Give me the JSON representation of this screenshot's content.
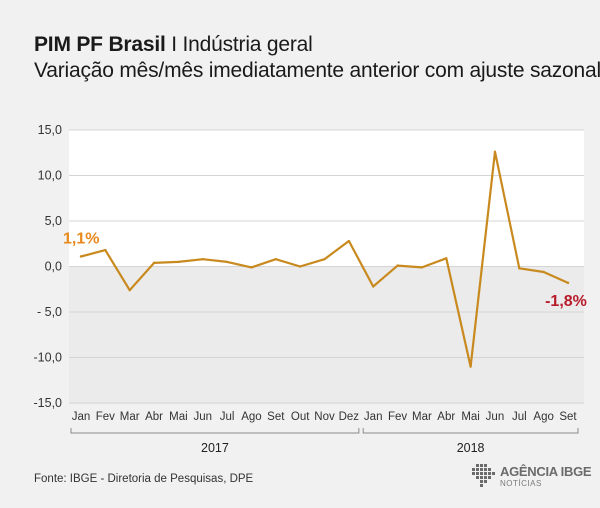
{
  "header": {
    "title_bold": "PIM PF Brasil",
    "title_sep": " I ",
    "title_rest": "Indústria geral",
    "subtitle": "Variação mês/mês imediatamente anterior com ajuste sazonal"
  },
  "chart_data": {
    "type": "line",
    "title": "PIM PF Brasil I Indústria geral",
    "subtitle": "Variação mês/mês imediatamente anterior com ajuste sazonal",
    "categories": [
      "Jan",
      "Fev",
      "Mar",
      "Abr",
      "Mai",
      "Jun",
      "Jul",
      "Ago",
      "Set",
      "Out",
      "Nov",
      "Dez",
      "Jan",
      "Fev",
      "Mar",
      "Abr",
      "Mai",
      "Jun",
      "Jul",
      "Ago",
      "Set"
    ],
    "years": [
      {
        "label": "2017",
        "start": 0,
        "end": 11
      },
      {
        "label": "2018",
        "start": 12,
        "end": 20
      }
    ],
    "series": [
      {
        "name": "Indústria geral",
        "color": "#c88a1e",
        "values": [
          1.1,
          1.8,
          -2.6,
          0.4,
          0.5,
          0.8,
          0.5,
          -0.1,
          0.8,
          0.0,
          0.8,
          2.8,
          -2.2,
          0.1,
          -0.1,
          0.9,
          -11.0,
          12.6,
          -0.2,
          -0.6,
          -1.8
        ]
      }
    ],
    "ylim": [
      -15,
      15
    ],
    "yticks": [
      "15,0",
      "10,0",
      "5,0",
      "0,0",
      "- 5,0",
      "-10,0",
      "-15,0"
    ],
    "ytick_values": [
      15,
      10,
      5,
      0,
      -5,
      -10,
      -15
    ],
    "annotations": [
      {
        "index": 0,
        "text": "1,1%",
        "color": "#e8891e"
      },
      {
        "index": 20,
        "text": "-1,8%",
        "color": "#b71c2b"
      }
    ],
    "grid": true
  },
  "footer": {
    "source": "Fonte: IBGE - Diretoria de Pesquisas, DPE",
    "logo_name": "AGÊNCIA IBGE",
    "logo_sub": "NOTÍCIAS"
  }
}
